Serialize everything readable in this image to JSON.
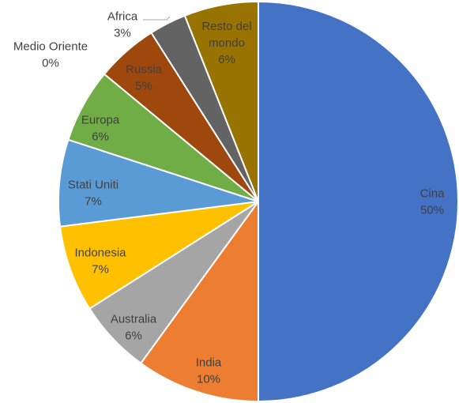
{
  "chart_data": {
    "type": "pie",
    "start": "top-clockwise",
    "legend": "none",
    "slices": [
      {
        "label": "Cina",
        "pct_label": "50%",
        "value": 50,
        "color": "#4472C4",
        "text_color": "#404040"
      },
      {
        "label": "India",
        "pct_label": "10%",
        "value": 10,
        "color": "#ED7D31",
        "text_color": "#404040"
      },
      {
        "label": "Australia",
        "pct_label": "6%",
        "value": 6,
        "color": "#A5A5A5",
        "text_color": "#404040"
      },
      {
        "label": "Indonesia",
        "pct_label": "7%",
        "value": 7,
        "color": "#FFC000",
        "text_color": "#404040"
      },
      {
        "label": "Stati Uniti",
        "pct_label": "7%",
        "value": 7,
        "color": "#5B9BD5",
        "text_color": "#404040"
      },
      {
        "label": "Europa",
        "pct_label": "6%",
        "value": 6,
        "color": "#70AD47",
        "text_color": "#404040"
      },
      {
        "label": "Russia",
        "pct_label": "5%",
        "value": 5,
        "color": "#9E480E",
        "text_color": "#404040"
      },
      {
        "label": "Medio Oriente",
        "pct_label": "0%",
        "value": 0,
        "color": "#264478",
        "text_color": "#404040"
      },
      {
        "label": "Africa",
        "pct_label": "3%",
        "value": 3,
        "color": "#636363",
        "text_color": "#404040"
      },
      {
        "label": "Resto del mondo",
        "label_lines": [
          "Resto del",
          "mondo"
        ],
        "pct_label": "6%",
        "value": 6,
        "color": "#997300",
        "text_color": "#404040"
      }
    ]
  }
}
